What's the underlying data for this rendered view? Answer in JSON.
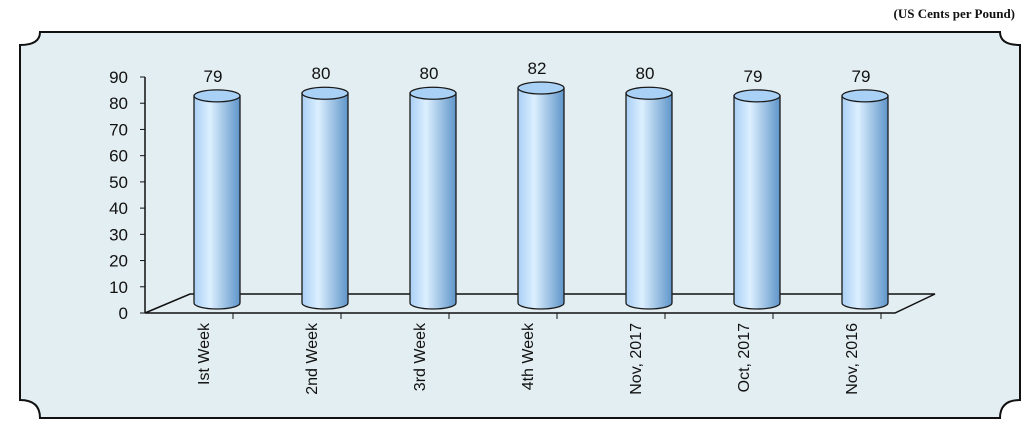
{
  "unit_label": "(US Cents per Pound)",
  "colors": {
    "bar_fill": "#a9d0f5",
    "bar_light": "#dcefff",
    "bar_dark": "#5f95c9",
    "bar_stroke": "#1a1a1a",
    "frame_bg": "#e3eef2"
  },
  "chart_data": {
    "type": "bar",
    "categories": [
      "Ist Week",
      "2nd Week",
      "3rd Week",
      "4th Week",
      "Nov, 2017",
      "Oct, 2017",
      "Nov, 2016"
    ],
    "values": [
      79,
      80,
      80,
      82,
      80,
      79,
      79
    ],
    "ylim": [
      0,
      90
    ],
    "yticks": [
      0,
      10,
      20,
      30,
      40,
      50,
      60,
      70,
      80,
      90
    ],
    "title": "",
    "xlabel": "",
    "ylabel": "(US Cents per Pound)",
    "grid": false,
    "legend": "none"
  }
}
